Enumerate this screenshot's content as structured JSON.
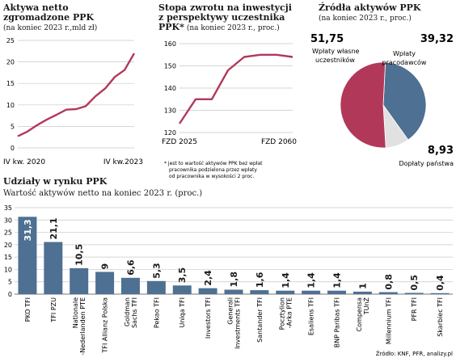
{
  "colors": {
    "line": "#b2385a",
    "bar": "#4e7092",
    "pie_own": "#b2385a",
    "pie_employer": "#4e7092",
    "pie_state": "#e1e1e1",
    "grid": "#c8c8c8"
  },
  "chart_data": [
    {
      "type": "line",
      "title": "Aktywa netto zgromadzone PPK",
      "title_lines": [
        "Aktywa netto",
        "zgromadzone PPK"
      ],
      "subtitle": "(na koniec 2023 r.,mld zł)",
      "x_labels": [
        "IV kw. 2020",
        "IV kw.2023"
      ],
      "ylim": [
        0,
        25
      ],
      "yticks": [
        "0",
        "5",
        "10",
        "15",
        "20",
        "25"
      ],
      "grid": true,
      "values": [
        2.7,
        3.8,
        5.3,
        6.6,
        7.7,
        8.9,
        9.0,
        9.7,
        12.0,
        13.8,
        16.5,
        18.1,
        22.0
      ]
    },
    {
      "type": "line",
      "title": "Stopa zwrotu na inwestycji z perspektywy uczestnika PPK*",
      "title_lines": [
        "Stopa zwrotu na inwestycji",
        "z perspektywy uczestnika"
      ],
      "title_last": "PPK*",
      "subtitle": "(na koniec 2023 r., proc.)",
      "x_labels": [
        "FZD 2025",
        "FZD 2060"
      ],
      "ylim": [
        120,
        160
      ],
      "yticks": [
        "120",
        "130",
        "140",
        "150",
        "160"
      ],
      "grid": true,
      "values": [
        124,
        135,
        135,
        148,
        154,
        155,
        155,
        154
      ],
      "footnote_lines": [
        "* jest to wartość aktywów PPK bez wpłat",
        "pracownika podzielona przez wpłaty",
        "od pracownika w wysokości 2 proc."
      ]
    },
    {
      "type": "pie",
      "title": "Źródła aktywów PPK",
      "subtitle": "(na koniec 2023 r., proc.)",
      "slices": [
        {
          "label_lines": [
            "Wpłaty",
            "pracodawców"
          ],
          "value": 39.32,
          "value_text": "39,32"
        },
        {
          "label_lines": [
            "Dopłaty państwa"
          ],
          "value": 8.93,
          "value_text": "8,93"
        },
        {
          "label_lines": [
            "Wpłaty własne",
            "uczestników"
          ],
          "value": 51.75,
          "value_text": "51,75"
        }
      ]
    },
    {
      "type": "bar",
      "title": "Udziały w rynku PPK",
      "subtitle": "Wartość aktywów netto na koniec 2023 r. (proc.)",
      "ylim": [
        0,
        35
      ],
      "yticks": [
        "0",
        "5",
        "10",
        "15",
        "20",
        "25",
        "30",
        "35"
      ],
      "grid": true,
      "categories": [
        [
          "PKO TFI"
        ],
        [
          "TFI PZU"
        ],
        [
          "Nationale",
          "-Nederlanden PTE"
        ],
        [
          "TFI Allianz Polska"
        ],
        [
          "Goldman",
          "Sachs TFI"
        ],
        [
          "Pekao TFI"
        ],
        [
          "Uniqa TFI"
        ],
        [
          "Investors TFI"
        ],
        [
          "Generali",
          "Investments TFI"
        ],
        [
          "Santander TFI"
        ],
        [
          "Pocztylion",
          "-Arka PTE"
        ],
        [
          "Esaliens TFI"
        ],
        [
          "BNP Paribas TFI"
        ],
        [
          "Compensa",
          "TUnŻ"
        ],
        [
          "Millennium TFI"
        ],
        [
          "PFR TFI"
        ],
        [
          "Skarbiec TFI"
        ]
      ],
      "values": [
        31.3,
        21.1,
        10.5,
        9,
        6.6,
        5.3,
        3.5,
        2.4,
        1.8,
        1.6,
        1.4,
        1.4,
        1.4,
        1,
        0.8,
        0.5,
        0.4
      ],
      "value_labels": [
        "31,3",
        "21,1",
        "10,5",
        "9",
        "6,6",
        "5,3",
        "3,5",
        "2,4",
        "1,8",
        "1,6",
        "1,4",
        "1,4",
        "1,4",
        "1",
        "0,8",
        "0,5",
        "0,4"
      ]
    }
  ],
  "source": "Źródło: KNF, PFR, analizy.pl"
}
